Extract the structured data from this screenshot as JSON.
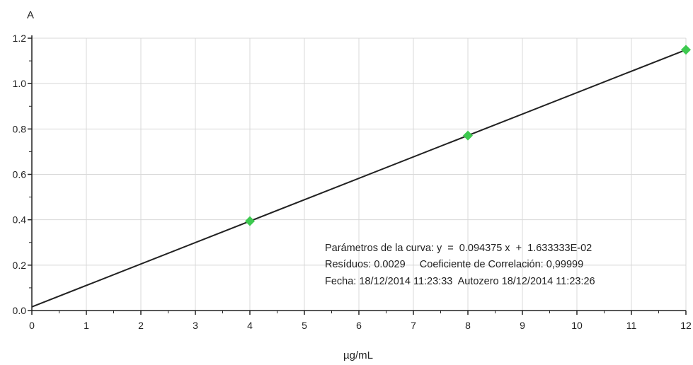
{
  "chart_data": {
    "type": "scatter",
    "xlabel": "µg/mL",
    "ylabel": "A",
    "xlim": [
      0,
      12
    ],
    "ylim": [
      0,
      1.2
    ],
    "x_ticks": [
      0,
      1,
      2,
      3,
      4,
      5,
      6,
      7,
      8,
      9,
      10,
      11,
      12
    ],
    "y_ticks": [
      0.0,
      0.2,
      0.4,
      0.6,
      0.8,
      1.0,
      1.2
    ],
    "x_tick_labels": [
      "0",
      "1",
      "2",
      "3",
      "4",
      "5",
      "6",
      "7",
      "8",
      "9",
      "10",
      "11",
      "12"
    ],
    "y_tick_labels": [
      "0.0",
      "0.2",
      "0.4",
      "0.6",
      "0.8",
      "1.0",
      "1.2"
    ],
    "grid": true,
    "points": [
      {
        "x": 4,
        "y": 0.394
      },
      {
        "x": 8,
        "y": 0.771
      },
      {
        "x": 12,
        "y": 1.149
      }
    ],
    "fit_line": {
      "slope": 0.094375,
      "intercept": 0.01633333
    },
    "annotations": [
      "Parámetros de la curva: y  =  0.094375 x  +  1.633333E-02",
      "Resíduos: 0.0029     Coeficiente de Correlación: 0,99999",
      "Fecha: 18/12/2014 11:23:33  Autozero 18/12/2014 11:23:26"
    ],
    "colors": {
      "marker": "#3dc94f",
      "line": "#222222",
      "grid": "#d8d8d8",
      "axis": "#222222"
    }
  }
}
